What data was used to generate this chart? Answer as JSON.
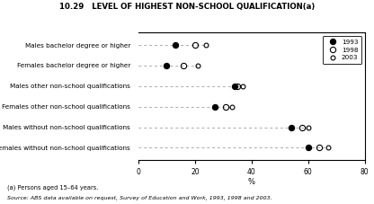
{
  "title": "10.29   LEVEL OF HIGHEST NON-SCHOOL QUALIFICATION(a)",
  "categories": [
    "Males bachelor degree or higher",
    "Females bachelor degree or higher",
    "Males other non-school qualifications",
    "Females other non-school qualifications",
    "Males without non-school qualifications",
    "Females without non-school qualifications"
  ],
  "years": [
    "1993",
    "1998",
    "2003"
  ],
  "data": {
    "Males bachelor degree or higher": [
      13,
      20,
      24
    ],
    "Females bachelor degree or higher": [
      10,
      16,
      21
    ],
    "Males other non-school qualifications": [
      34,
      35,
      37
    ],
    "Females other non-school qualifications": [
      27,
      31,
      33
    ],
    "Males without non-school qualifications": [
      54,
      58,
      60
    ],
    "Females without non-school qualifications": [
      60,
      64,
      67
    ]
  },
  "xlim": [
    0,
    80
  ],
  "xticks": [
    0,
    20,
    40,
    60,
    80
  ],
  "xlabel": "%",
  "footnote1": "(a) Persons aged 15–64 years.",
  "footnote2": "Source: ABS data available on request, Survey of Education and Work, 1993, 1998 and 2003.",
  "legend_labels": [
    "1993",
    "1998",
    "2003"
  ],
  "bg_color": "white",
  "dash_color": "#aaaaaa"
}
